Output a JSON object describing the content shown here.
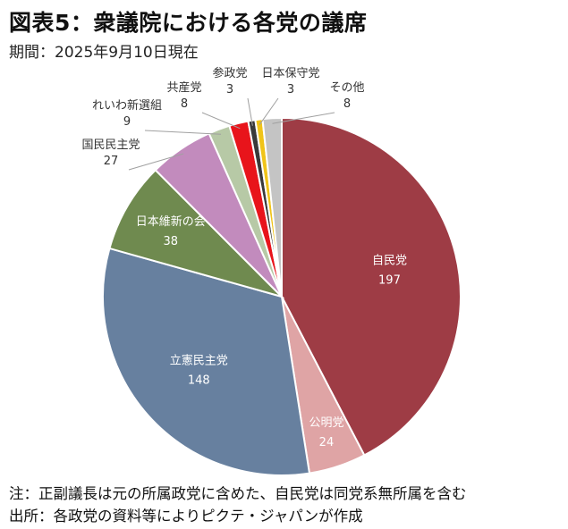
{
  "title": "図表5：衆議院における各党の議席",
  "subtitle": "期間：2025年9月10日現在",
  "chart_data": {
    "type": "pie",
    "start_angle_deg": 0,
    "direction": "clockwise",
    "slices": [
      {
        "name": "自民党",
        "value": 197,
        "color": "#9e3c45",
        "label_style": "inside",
        "text_color": "#ffffff"
      },
      {
        "name": "公明党",
        "value": 24,
        "color": "#dfa4a5",
        "label_style": "inside",
        "text_color": "#ffffff"
      },
      {
        "name": "立憲民主党",
        "value": 148,
        "color": "#67809f",
        "label_style": "inside",
        "text_color": "#ffffff"
      },
      {
        "name": "日本維新の会",
        "value": 38,
        "color": "#6f8a4f",
        "label_style": "inside",
        "text_color": "#ffffff"
      },
      {
        "name": "国民民主党",
        "value": 27,
        "color": "#c28bbd",
        "label_style": "outside",
        "text_color": "#333333"
      },
      {
        "name": "れいわ新選組",
        "value": 9,
        "color": "#b7c9a6",
        "label_style": "outside",
        "text_color": "#333333"
      },
      {
        "name": "共産党",
        "value": 8,
        "color": "#e8141b",
        "label_style": "outside",
        "text_color": "#333333"
      },
      {
        "name": "参政党",
        "value": 3,
        "color": "#3a3a3a",
        "label_style": "outside",
        "text_color": "#333333"
      },
      {
        "name": "日本保守党",
        "value": 3,
        "color": "#f0c419",
        "label_style": "outside",
        "text_color": "#333333"
      },
      {
        "name": "その他",
        "value": 8,
        "color": "#c4c4c4",
        "label_style": "outside",
        "text_color": "#333333"
      }
    ]
  },
  "notes": {
    "note1": "注：正副議長は元の所属政党に含めた、自民党は同党系無所属を含む",
    "note2": "出所：各政党の資料等によりピクテ・ジャパンが作成"
  }
}
